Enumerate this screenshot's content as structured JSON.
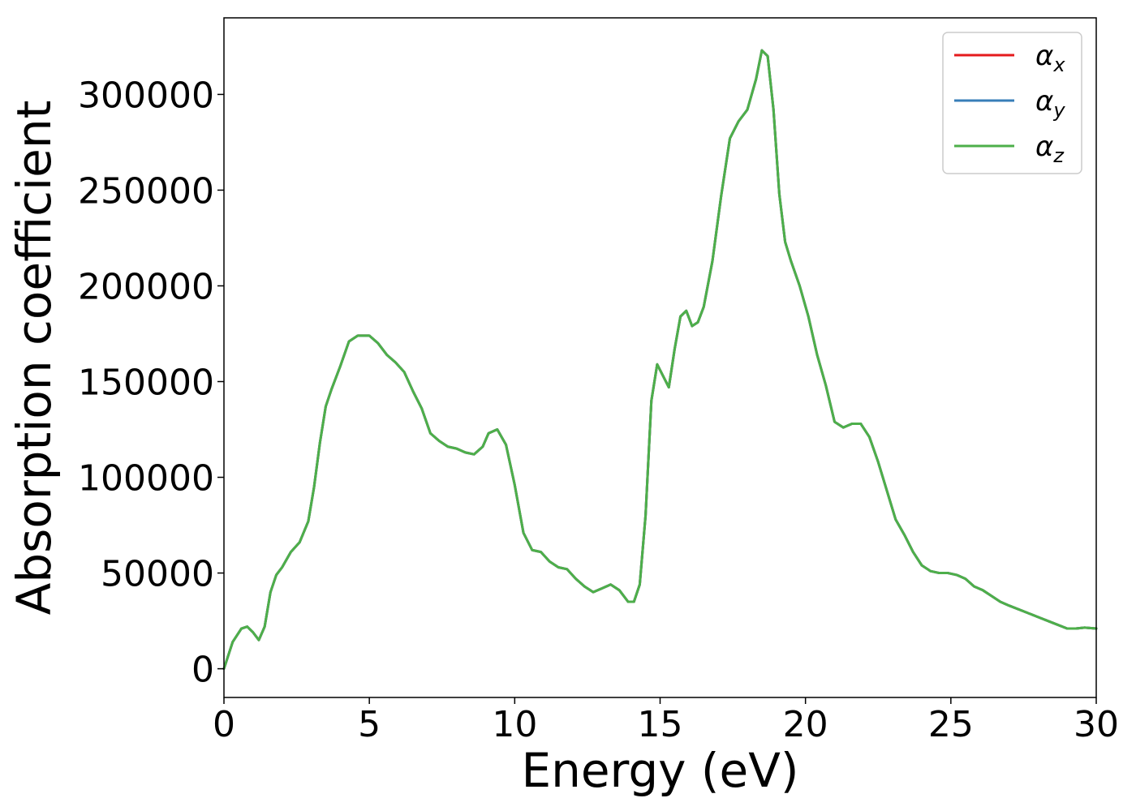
{
  "chart_data": {
    "type": "line",
    "xlabel": "Energy (eV)",
    "ylabel": "Absorption coefficient",
    "xlim": [
      0,
      30
    ],
    "ylim": [
      -15000,
      340000
    ],
    "xticks": [
      0,
      5,
      10,
      15,
      20,
      25,
      30
    ],
    "yticks": [
      0,
      50000,
      100000,
      150000,
      200000,
      250000,
      300000
    ],
    "grid": false,
    "legend_position": "top-right",
    "legend": [
      {
        "symbol": "α",
        "subscript": "x",
        "color": "#e41a1c"
      },
      {
        "symbol": "α",
        "subscript": "y",
        "color": "#377eb8"
      },
      {
        "symbol": "α",
        "subscript": "z",
        "color": "#4daf4a"
      }
    ],
    "x": [
      0,
      0.3,
      0.6,
      0.8,
      1.0,
      1.2,
      1.4,
      1.6,
      1.8,
      2.0,
      2.3,
      2.6,
      2.9,
      3.1,
      3.3,
      3.5,
      3.7,
      4.0,
      4.3,
      4.6,
      4.8,
      5.0,
      5.3,
      5.6,
      5.9,
      6.2,
      6.5,
      6.8,
      7.1,
      7.4,
      7.7,
      8.0,
      8.3,
      8.6,
      8.9,
      9.1,
      9.4,
      9.7,
      10.0,
      10.3,
      10.6,
      10.9,
      11.2,
      11.5,
      11.8,
      12.1,
      12.4,
      12.7,
      13.0,
      13.3,
      13.6,
      13.9,
      14.1,
      14.3,
      14.5,
      14.7,
      14.9,
      15.1,
      15.3,
      15.5,
      15.7,
      15.9,
      16.1,
      16.3,
      16.5,
      16.8,
      17.1,
      17.4,
      17.7,
      18.0,
      18.3,
      18.5,
      18.7,
      18.9,
      19.1,
      19.3,
      19.5,
      19.8,
      20.1,
      20.4,
      20.7,
      21.0,
      21.3,
      21.6,
      21.9,
      22.2,
      22.5,
      22.8,
      23.1,
      23.4,
      23.7,
      24.0,
      24.3,
      24.6,
      24.9,
      25.2,
      25.5,
      25.8,
      26.1,
      26.4,
      26.7,
      27.0,
      27.5,
      28.0,
      28.5,
      29.0,
      29.3,
      29.6,
      30.0
    ],
    "series": [
      {
        "name": "α_x",
        "color": "#e41a1c",
        "values": [
          0,
          14000,
          21000,
          22000,
          19000,
          15000,
          22000,
          40000,
          49000,
          53000,
          61000,
          66000,
          77000,
          95000,
          118000,
          137000,
          146000,
          158000,
          171000,
          174000,
          174000,
          174000,
          170000,
          164000,
          160000,
          155000,
          145000,
          136000,
          123000,
          119000,
          116000,
          115000,
          113000,
          112000,
          116000,
          123000,
          125000,
          117000,
          96000,
          71000,
          62000,
          61000,
          56000,
          53000,
          52000,
          47000,
          43000,
          40000,
          42000,
          44000,
          41000,
          35000,
          35000,
          44000,
          80000,
          140000,
          159000,
          153000,
          147000,
          167000,
          184000,
          187000,
          179000,
          181000,
          189000,
          213000,
          247000,
          277000,
          286000,
          292000,
          308000,
          323000,
          320000,
          292000,
          248000,
          223000,
          213000,
          200000,
          184000,
          164000,
          148000,
          129000,
          126000,
          128000,
          128000,
          121000,
          108000,
          93000,
          78000,
          70000,
          61000,
          54000,
          51000,
          50000,
          50000,
          49000,
          47000,
          43000,
          41000,
          38000,
          35000,
          33000,
          30000,
          27000,
          24000,
          21000,
          21000,
          21500,
          21000
        ]
      },
      {
        "name": "α_y",
        "color": "#377eb8",
        "values": [
          0,
          14000,
          21000,
          22000,
          19000,
          15000,
          22000,
          40000,
          49000,
          53000,
          61000,
          66000,
          77000,
          95000,
          118000,
          137000,
          146000,
          158000,
          171000,
          174000,
          174000,
          174000,
          170000,
          164000,
          160000,
          155000,
          145000,
          136000,
          123000,
          119000,
          116000,
          115000,
          113000,
          112000,
          116000,
          123000,
          125000,
          117000,
          96000,
          71000,
          62000,
          61000,
          56000,
          53000,
          52000,
          47000,
          43000,
          40000,
          42000,
          44000,
          41000,
          35000,
          35000,
          44000,
          80000,
          140000,
          159000,
          153000,
          147000,
          167000,
          184000,
          187000,
          179000,
          181000,
          189000,
          213000,
          247000,
          277000,
          286000,
          292000,
          308000,
          323000,
          320000,
          292000,
          248000,
          223000,
          213000,
          200000,
          184000,
          164000,
          148000,
          129000,
          126000,
          128000,
          128000,
          121000,
          108000,
          93000,
          78000,
          70000,
          61000,
          54000,
          51000,
          50000,
          50000,
          49000,
          47000,
          43000,
          41000,
          38000,
          35000,
          33000,
          30000,
          27000,
          24000,
          21000,
          21000,
          21500,
          21000
        ]
      },
      {
        "name": "α_z",
        "color": "#4daf4a",
        "values": [
          0,
          14000,
          21000,
          22000,
          19000,
          15000,
          22000,
          40000,
          49000,
          53000,
          61000,
          66000,
          77000,
          95000,
          118000,
          137000,
          146000,
          158000,
          171000,
          174000,
          174000,
          174000,
          170000,
          164000,
          160000,
          155000,
          145000,
          136000,
          123000,
          119000,
          116000,
          115000,
          113000,
          112000,
          116000,
          123000,
          125000,
          117000,
          96000,
          71000,
          62000,
          61000,
          56000,
          53000,
          52000,
          47000,
          43000,
          40000,
          42000,
          44000,
          41000,
          35000,
          35000,
          44000,
          80000,
          140000,
          159000,
          153000,
          147000,
          167000,
          184000,
          187000,
          179000,
          181000,
          189000,
          213000,
          247000,
          277000,
          286000,
          292000,
          308000,
          323000,
          320000,
          292000,
          248000,
          223000,
          213000,
          200000,
          184000,
          164000,
          148000,
          129000,
          126000,
          128000,
          128000,
          121000,
          108000,
          93000,
          78000,
          70000,
          61000,
          54000,
          51000,
          50000,
          50000,
          49000,
          47000,
          43000,
          41000,
          38000,
          35000,
          33000,
          30000,
          27000,
          24000,
          21000,
          21000,
          21500,
          21000
        ]
      }
    ]
  }
}
